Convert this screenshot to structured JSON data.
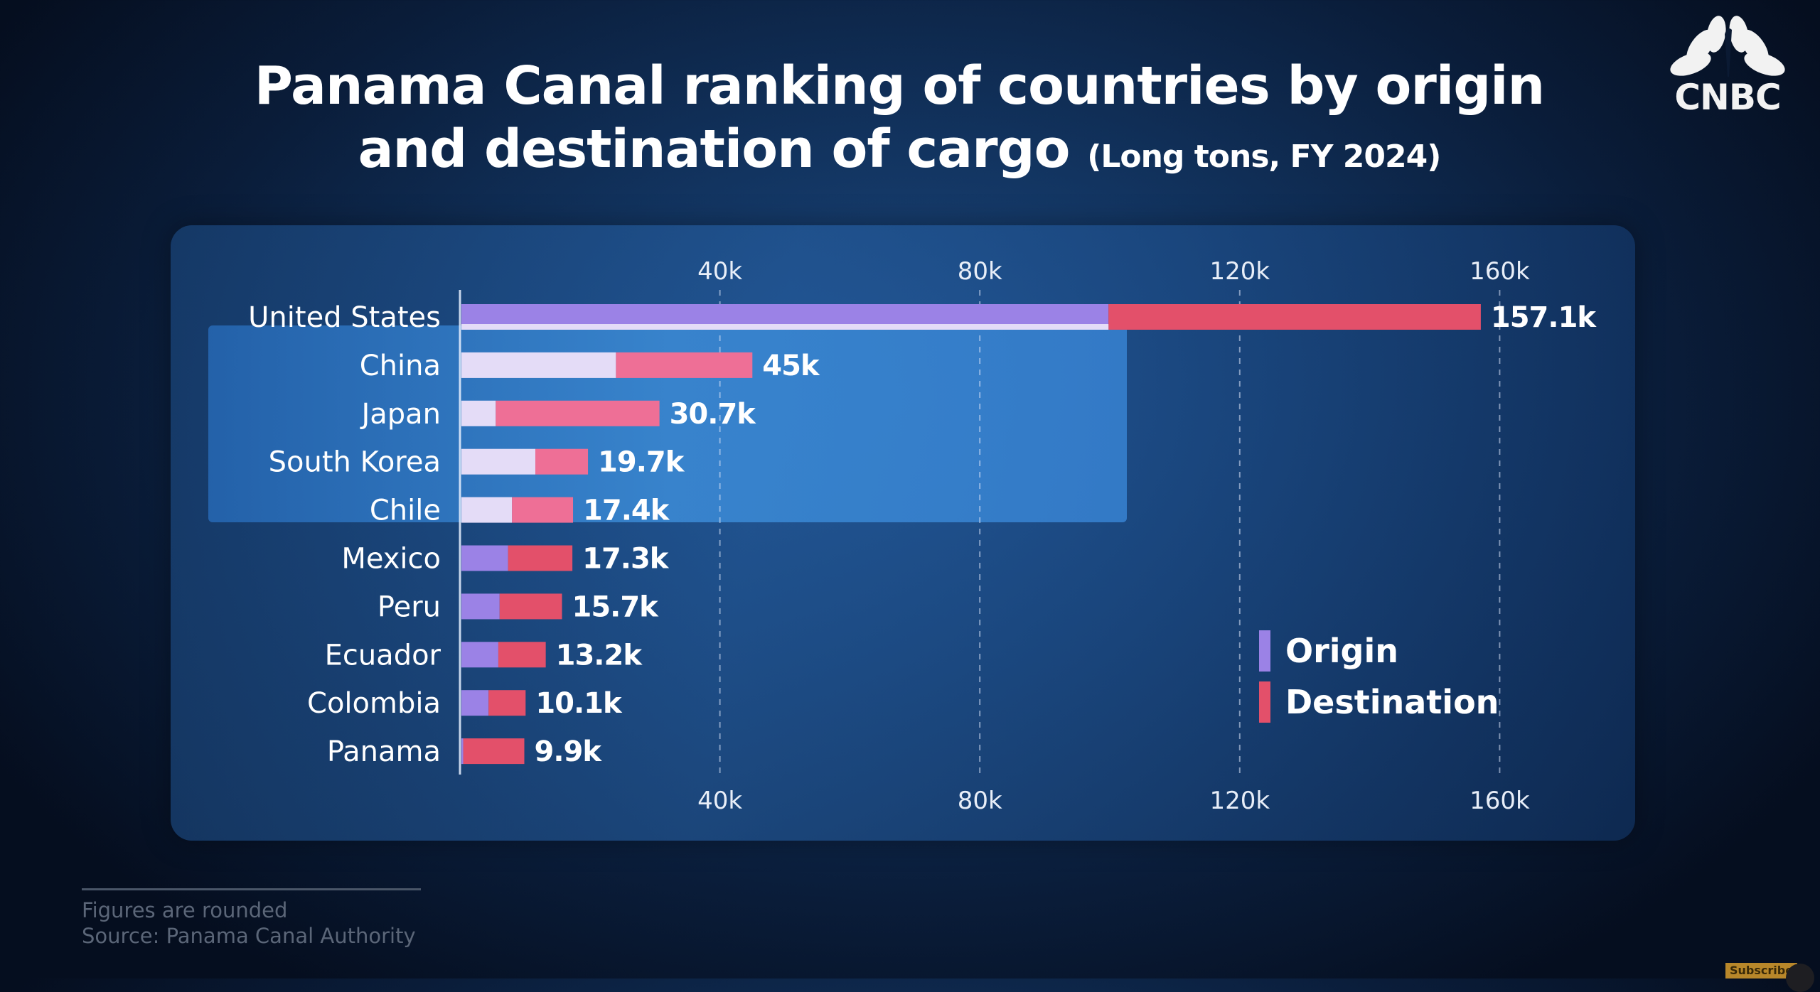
{
  "title": {
    "line1": "Panama Canal ranking of countries by origin",
    "line2": "and destination of cargo",
    "subtitle": "(Long tons, FY 2024)"
  },
  "brand": {
    "logo_icon": "peacock-icon",
    "name": "CNBC"
  },
  "colors": {
    "origin": "#9b82e6",
    "origin_highlight": "#e4dcf7",
    "destination": "#e3506a",
    "destination_highlight": "#ee6f96",
    "background": "#0a1d3a"
  },
  "chart_data": {
    "type": "bar",
    "orientation": "horizontal",
    "stacked": true,
    "title": "Panama Canal ranking of countries by origin and destination of cargo (Long tons, FY 2024)",
    "xlabel": "",
    "ylabel": "",
    "xlim": [
      0,
      175
    ],
    "unit": "k long tons",
    "ticks": [
      40,
      80,
      120,
      160
    ],
    "tick_labels": [
      "40k",
      "80k",
      "120k",
      "160k"
    ],
    "grid": "vertical dashed",
    "legend_position": "bottom-right",
    "categories": [
      "United States",
      "China",
      "Japan",
      "South Korea",
      "Chile",
      "Mexico",
      "Peru",
      "Ecuador",
      "Colombia",
      "Panama"
    ],
    "series": [
      {
        "name": "Origin",
        "values": [
          99.8,
          24.0,
          5.5,
          11.6,
          8.0,
          7.4,
          6.1,
          5.9,
          4.4,
          0.5
        ]
      },
      {
        "name": "Destination",
        "values": [
          57.3,
          21.0,
          25.2,
          8.1,
          9.4,
          9.9,
          9.6,
          7.3,
          5.7,
          9.4
        ]
      }
    ],
    "totals": [
      157.1,
      45,
      30.7,
      19.7,
      17.4,
      17.3,
      15.7,
      13.2,
      10.1,
      9.9
    ],
    "total_labels": [
      "157.1k",
      "45k",
      "30.7k",
      "19.7k",
      "17.4k",
      "17.3k",
      "15.7k",
      "13.2k",
      "10.1k",
      "9.9k"
    ],
    "highlighted_categories": [
      "China",
      "Japan",
      "South Korea",
      "Chile"
    ]
  },
  "legend": [
    {
      "label": "Origin",
      "color_key": "origin"
    },
    {
      "label": "Destination",
      "color_key": "destination"
    }
  ],
  "footer": {
    "note": "Figures are rounded",
    "source": "Source: Panama Canal Authority"
  },
  "overlay": {
    "subscribe_label": "Subscribe"
  }
}
